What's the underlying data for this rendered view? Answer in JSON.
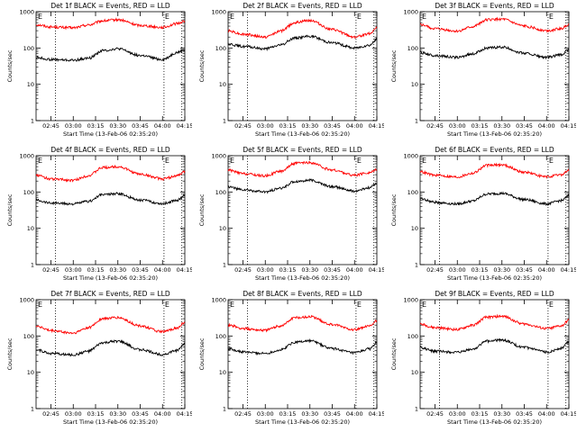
{
  "figure": {
    "time_ticks": [
      "02:45",
      "03:00",
      "03:15",
      "03:30",
      "03:45",
      "04:00",
      "04:15"
    ],
    "y_ticks": [
      "1",
      "10",
      "100",
      "1000"
    ],
    "xlabel": "Start Time (13-Feb-06 02:35:20)",
    "ylabel": "Counts/sec"
  },
  "panels": [
    {
      "title": "Det 1f BLACK = Events, RED = LLD",
      "marker_left": "E",
      "marker_right": "E"
    },
    {
      "title": "Det 2f BLACK = Events, RED = LLD",
      "marker_left": "E",
      "marker_right": "E"
    },
    {
      "title": "Det 3f BLACK = Events, RED = LLD",
      "marker_left": "E",
      "marker_right": "E"
    },
    {
      "title": "Det 4f BLACK = Events, RED = LLD",
      "marker_left": "E",
      "marker_right": "E"
    },
    {
      "title": "Det 5f BLACK = Events, RED = LLD",
      "marker_left": "E",
      "marker_right": "E"
    },
    {
      "title": "Det 6f BLACK = Events, RED = LLD",
      "marker_left": "E",
      "marker_right": "E"
    },
    {
      "title": "Det 7f BLACK = Events, RED = LLD",
      "marker_left": "E",
      "marker_right": "E"
    },
    {
      "title": "Det 8f BLACK = Events, RED = LLD",
      "marker_left": "E",
      "marker_right": "E"
    },
    {
      "title": "Det 9f BLACK = Events, RED = LLD",
      "marker_left": "E",
      "marker_right": "E"
    }
  ],
  "chart_data": [
    {
      "type": "line",
      "title": "Det 1f BLACK = Events, RED = LLD",
      "xlabel": "Start Time (13-Feb-06 02:35:20)",
      "ylabel": "Counts/sec",
      "yscale": "log",
      "ylim": [
        1,
        1000
      ],
      "x": [
        "02:35",
        "02:45",
        "03:00",
        "03:10",
        "03:20",
        "03:30",
        "03:45",
        "04:00",
        "04:10",
        "04:15"
      ],
      "vlines": [
        "02:48",
        "04:01",
        "04:13"
      ],
      "series": [
        {
          "name": "LLD",
          "color": "#ff0000",
          "values": [
            440,
            380,
            360,
            430,
            560,
            600,
            420,
            370,
            470,
            560
          ]
        },
        {
          "name": "Events",
          "color": "#000000",
          "values": [
            55,
            48,
            46,
            52,
            85,
            95,
            62,
            48,
            75,
            90
          ]
        }
      ]
    },
    {
      "type": "line",
      "title": "Det 2f BLACK = Events, RED = LLD",
      "xlabel": "Start Time (13-Feb-06 02:35:20)",
      "ylabel": "Counts/sec",
      "yscale": "log",
      "ylim": [
        1,
        1000
      ],
      "x": [
        "02:35",
        "02:45",
        "03:00",
        "03:10",
        "03:20",
        "03:30",
        "03:45",
        "04:00",
        "04:10",
        "04:15"
      ],
      "vlines": [
        "02:48",
        "04:01",
        "04:13"
      ],
      "series": [
        {
          "name": "LLD",
          "color": "#ff0000",
          "values": [
            300,
            240,
            200,
            290,
            500,
            580,
            320,
            200,
            250,
            360
          ]
        },
        {
          "name": "Events",
          "color": "#000000",
          "values": [
            130,
            110,
            95,
            120,
            190,
            210,
            140,
            100,
            120,
            170
          ]
        }
      ]
    },
    {
      "type": "line",
      "title": "Det 3f BLACK = Events, RED = LLD",
      "xlabel": "Start Time (13-Feb-06 02:35:20)",
      "ylabel": "Counts/sec",
      "yscale": "log",
      "ylim": [
        1,
        1000
      ],
      "x": [
        "02:35",
        "02:45",
        "03:00",
        "03:10",
        "03:20",
        "03:30",
        "03:45",
        "04:00",
        "04:10",
        "04:15"
      ],
      "vlines": [
        "02:48",
        "04:01",
        "04:13"
      ],
      "series": [
        {
          "name": "LLD",
          "color": "#ff0000",
          "values": [
            440,
            340,
            290,
            380,
            600,
            620,
            400,
            300,
            340,
            450
          ]
        },
        {
          "name": "Events",
          "color": "#000000",
          "values": [
            75,
            62,
            55,
            68,
            100,
            105,
            72,
            55,
            65,
            90
          ]
        }
      ]
    },
    {
      "type": "line",
      "title": "Det 4f BLACK = Events, RED = LLD",
      "xlabel": "Start Time (13-Feb-06 02:35:20)",
      "ylabel": "Counts/sec",
      "yscale": "log",
      "ylim": [
        1,
        1000
      ],
      "x": [
        "02:35",
        "02:45",
        "03:00",
        "03:10",
        "03:20",
        "03:30",
        "03:45",
        "04:00",
        "04:10",
        "04:15"
      ],
      "vlines": [
        "02:48",
        "04:01",
        "04:13"
      ],
      "series": [
        {
          "name": "LLD",
          "color": "#ff0000",
          "values": [
            290,
            230,
            210,
            280,
            470,
            500,
            310,
            230,
            280,
            360
          ]
        },
        {
          "name": "Events",
          "color": "#000000",
          "values": [
            60,
            50,
            47,
            55,
            85,
            90,
            60,
            48,
            60,
            80
          ]
        }
      ]
    },
    {
      "type": "line",
      "title": "Det 5f BLACK = Events, RED = LLD",
      "xlabel": "Start Time (13-Feb-06 02:35:20)",
      "ylabel": "Counts/sec",
      "yscale": "log",
      "ylim": [
        1,
        1000
      ],
      "x": [
        "02:35",
        "02:45",
        "03:00",
        "03:10",
        "03:20",
        "03:30",
        "03:45",
        "04:00",
        "04:10",
        "04:15"
      ],
      "vlines": [
        "02:48",
        "04:01",
        "04:13"
      ],
      "series": [
        {
          "name": "LLD",
          "color": "#ff0000",
          "values": [
            400,
            320,
            280,
            370,
            620,
            640,
            400,
            290,
            340,
            430
          ]
        },
        {
          "name": "Events",
          "color": "#000000",
          "values": [
            140,
            115,
            100,
            125,
            195,
            210,
            140,
            105,
            130,
            175
          ]
        }
      ]
    },
    {
      "type": "line",
      "title": "Det 6f BLACK = Events, RED = LLD",
      "xlabel": "Start Time (13-Feb-06 02:35:20)",
      "ylabel": "Counts/sec",
      "yscale": "log",
      "ylim": [
        1,
        1000
      ],
      "x": [
        "02:35",
        "02:45",
        "03:00",
        "03:10",
        "03:20",
        "03:30",
        "03:45",
        "04:00",
        "04:10",
        "04:15"
      ],
      "vlines": [
        "02:48",
        "04:01",
        "04:13"
      ],
      "series": [
        {
          "name": "LLD",
          "color": "#ff0000",
          "values": [
            360,
            290,
            260,
            330,
            540,
            560,
            350,
            260,
            300,
            400
          ]
        },
        {
          "name": "Events",
          "color": "#000000",
          "values": [
            65,
            52,
            47,
            56,
            88,
            92,
            62,
            47,
            58,
            78
          ]
        }
      ]
    },
    {
      "type": "line",
      "title": "Det 7f BLACK = Events, RED = LLD",
      "xlabel": "Start Time (13-Feb-06 02:35:20)",
      "ylabel": "Counts/sec",
      "yscale": "log",
      "ylim": [
        1,
        1000
      ],
      "x": [
        "02:35",
        "02:45",
        "03:00",
        "03:10",
        "03:20",
        "03:30",
        "03:45",
        "04:00",
        "04:10",
        "04:15"
      ],
      "vlines": [
        "02:48",
        "04:01",
        "04:13"
      ],
      "series": [
        {
          "name": "LLD",
          "color": "#ff0000",
          "values": [
            190,
            140,
            120,
            170,
            300,
            320,
            190,
            130,
            165,
            240
          ]
        },
        {
          "name": "Events",
          "color": "#000000",
          "values": [
            42,
            33,
            30,
            38,
            65,
            72,
            42,
            31,
            40,
            62
          ]
        }
      ]
    },
    {
      "type": "line",
      "title": "Det 8f BLACK = Events, RED = LLD",
      "xlabel": "Start Time (13-Feb-06 02:35:20)",
      "ylabel": "Counts/sec",
      "yscale": "log",
      "ylim": [
        1,
        1000
      ],
      "x": [
        "02:35",
        "02:45",
        "03:00",
        "03:10",
        "03:20",
        "03:30",
        "03:45",
        "04:00",
        "04:10",
        "04:15"
      ],
      "vlines": [
        "02:48",
        "04:01",
        "04:13"
      ],
      "series": [
        {
          "name": "LLD",
          "color": "#ff0000",
          "values": [
            200,
            160,
            145,
            190,
            320,
            340,
            205,
            150,
            185,
            260
          ]
        },
        {
          "name": "Events",
          "color": "#000000",
          "values": [
            45,
            36,
            33,
            41,
            68,
            74,
            45,
            34,
            44,
            66
          ]
        }
      ]
    },
    {
      "type": "line",
      "title": "Det 9f BLACK = Events, RED = LLD",
      "xlabel": "Start Time (13-Feb-06 02:35:20)",
      "ylabel": "Counts/sec",
      "yscale": "log",
      "ylim": [
        1,
        1000
      ],
      "x": [
        "02:35",
        "02:45",
        "03:00",
        "03:10",
        "03:20",
        "03:30",
        "03:45",
        "04:00",
        "04:10",
        "04:15"
      ],
      "vlines": [
        "02:48",
        "04:01",
        "04:13"
      ],
      "series": [
        {
          "name": "LLD",
          "color": "#ff0000",
          "values": [
            210,
            170,
            150,
            195,
            330,
            350,
            215,
            160,
            190,
            270
          ]
        },
        {
          "name": "Events",
          "color": "#000000",
          "values": [
            48,
            38,
            35,
            43,
            72,
            78,
            48,
            36,
            46,
            70
          ]
        }
      ]
    }
  ]
}
